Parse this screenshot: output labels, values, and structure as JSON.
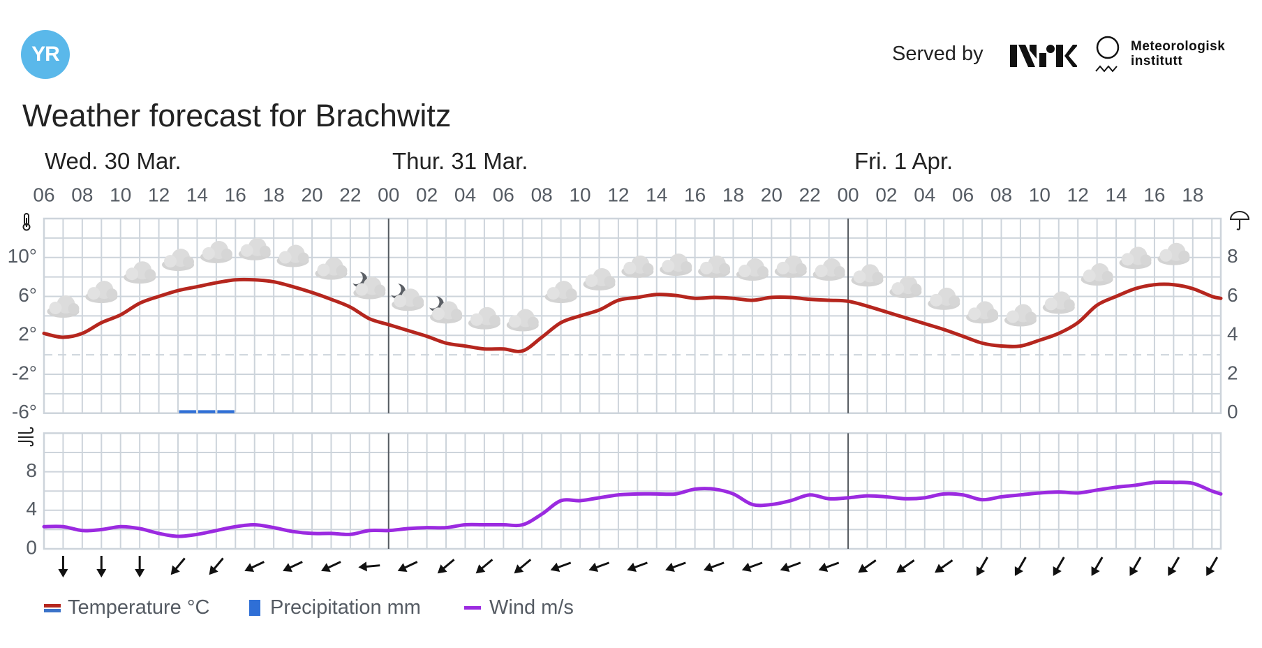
{
  "header": {
    "logo_text": "YR",
    "served_by": "Served by",
    "partner_logos": [
      "NRK",
      "Meteorologisk institutt"
    ],
    "met_line1": "Meteorologisk",
    "met_line2": "institutt"
  },
  "title": "Weather forecast for Brachwitz",
  "days": [
    "Wed. 30 Mar.",
    "Thur. 31 Mar.",
    "Fri. 1 Apr."
  ],
  "legend": {
    "temperature": "Temperature °C",
    "precipitation": "Precipitation mm",
    "wind": "Wind m/s"
  },
  "colors": {
    "temperature": "#b5261e",
    "temperature_below_zero": "#3b73c9",
    "precipitation": "#2f6fd6",
    "wind": "#9b2ae0",
    "grid": "#cdd4db",
    "day_divider": "#555a60",
    "brand": "#5ab8ea"
  },
  "chart_data": [
    {
      "type": "line",
      "name": "temperature-precipitation",
      "x_tick_labels": [
        "06",
        "08",
        "10",
        "12",
        "14",
        "16",
        "18",
        "20",
        "22",
        "00",
        "02",
        "04",
        "06",
        "08",
        "10",
        "12",
        "14",
        "16",
        "18",
        "20",
        "22",
        "00",
        "02",
        "04",
        "06",
        "08",
        "10",
        "12",
        "14",
        "16",
        "18"
      ],
      "y_left_ticks": [
        "10°",
        "6°",
        "2°",
        "-2°",
        "-6°"
      ],
      "y_left_tick_values": [
        10,
        6,
        2,
        -2,
        -6
      ],
      "ylim_left": [
        -6,
        14
      ],
      "y_right_ticks": [
        "8",
        "6",
        "4",
        "2",
        "0"
      ],
      "y_right_tick_values": [
        8,
        6,
        4,
        2,
        0
      ],
      "ylim_right": [
        0,
        10
      ],
      "zero_line": 0,
      "grid": true,
      "times": [
        "Wed 06",
        "Wed 07",
        "Wed 08",
        "Wed 09",
        "Wed 10",
        "Wed 11",
        "Wed 12",
        "Wed 13",
        "Wed 14",
        "Wed 15",
        "Wed 16",
        "Wed 17",
        "Wed 18",
        "Wed 19",
        "Wed 20",
        "Wed 21",
        "Wed 22",
        "Wed 23",
        "Thu 00",
        "Thu 01",
        "Thu 02",
        "Thu 03",
        "Thu 04",
        "Thu 05",
        "Thu 06",
        "Thu 07",
        "Thu 08",
        "Thu 09",
        "Thu 10",
        "Thu 11",
        "Thu 12",
        "Thu 13",
        "Thu 14",
        "Thu 15",
        "Thu 16",
        "Thu 17",
        "Thu 18",
        "Thu 19",
        "Thu 20",
        "Thu 21",
        "Thu 22",
        "Thu 23",
        "Fri 00",
        "Fri 01",
        "Fri 02",
        "Fri 03",
        "Fri 04",
        "Fri 05",
        "Fri 06",
        "Fri 07",
        "Fri 08",
        "Fri 09",
        "Fri 10",
        "Fri 11",
        "Fri 12",
        "Fri 13",
        "Fri 14",
        "Fri 15",
        "Fri 16",
        "Fri 17",
        "Fri 18",
        "Fri 19"
      ],
      "series": [
        {
          "name": "Temperature °C",
          "values": [
            2.2,
            1.8,
            2.2,
            3.3,
            4.1,
            5.3,
            6.0,
            6.6,
            7.0,
            7.4,
            7.7,
            7.7,
            7.5,
            7.0,
            6.4,
            5.7,
            4.9,
            3.7,
            3.1,
            2.5,
            1.9,
            1.2,
            0.9,
            0.6,
            0.6,
            0.4,
            1.8,
            3.3,
            4.0,
            4.6,
            5.6,
            5.9,
            6.2,
            6.1,
            5.8,
            5.9,
            5.8,
            5.6,
            5.9,
            5.9,
            5.7,
            5.6,
            5.5,
            5.0,
            4.4,
            3.8,
            3.2,
            2.6,
            1.9,
            1.2,
            0.9,
            0.9,
            1.5,
            2.2,
            3.3,
            5.1,
            6.0,
            6.8,
            7.2,
            7.2,
            6.8,
            6.0
          ]
        }
      ],
      "precipitation": [
        {
          "time": "Wed 13",
          "mm": 0.1
        },
        {
          "time": "Wed 14",
          "mm": 0.1
        },
        {
          "time": "Wed 15",
          "mm": 0.1
        }
      ],
      "symbols": [
        {
          "time": "Wed 07",
          "symbol": "cloudy"
        },
        {
          "time": "Wed 09",
          "symbol": "cloudy"
        },
        {
          "time": "Wed 11",
          "symbol": "cloudy"
        },
        {
          "time": "Wed 13",
          "symbol": "cloudy"
        },
        {
          "time": "Wed 15",
          "symbol": "cloudy"
        },
        {
          "time": "Wed 17",
          "symbol": "cloudy"
        },
        {
          "time": "Wed 19",
          "symbol": "cloudy"
        },
        {
          "time": "Wed 21",
          "symbol": "cloudy"
        },
        {
          "time": "Wed 23",
          "symbol": "partly-cloudy-night"
        },
        {
          "time": "Thu 01",
          "symbol": "partly-cloudy-night"
        },
        {
          "time": "Thu 03",
          "symbol": "partly-cloudy-night"
        },
        {
          "time": "Thu 05",
          "symbol": "cloudy"
        },
        {
          "time": "Thu 07",
          "symbol": "cloudy"
        },
        {
          "time": "Thu 09",
          "symbol": "cloudy"
        },
        {
          "time": "Thu 11",
          "symbol": "cloudy"
        },
        {
          "time": "Thu 13",
          "symbol": "cloudy"
        },
        {
          "time": "Thu 15",
          "symbol": "cloudy"
        },
        {
          "time": "Thu 17",
          "symbol": "cloudy"
        },
        {
          "time": "Thu 19",
          "symbol": "cloudy"
        },
        {
          "time": "Thu 21",
          "symbol": "cloudy"
        },
        {
          "time": "Thu 23",
          "symbol": "cloudy"
        },
        {
          "time": "Fri 01",
          "symbol": "cloudy"
        },
        {
          "time": "Fri 03",
          "symbol": "cloudy"
        },
        {
          "time": "Fri 05",
          "symbol": "cloudy"
        },
        {
          "time": "Fri 07",
          "symbol": "cloudy"
        },
        {
          "time": "Fri 09",
          "symbol": "cloudy"
        },
        {
          "time": "Fri 11",
          "symbol": "cloudy"
        },
        {
          "time": "Fri 13",
          "symbol": "cloudy"
        },
        {
          "time": "Fri 15",
          "symbol": "cloudy"
        },
        {
          "time": "Fri 17",
          "symbol": "cloudy"
        }
      ]
    },
    {
      "type": "line",
      "name": "wind",
      "y_left_ticks": [
        "8",
        "4",
        "0"
      ],
      "y_left_tick_values": [
        8,
        4,
        0
      ],
      "ylim": [
        0,
        12
      ],
      "grid": true,
      "series": [
        {
          "name": "Wind m/s",
          "values": [
            2.3,
            2.3,
            1.9,
            2.0,
            2.3,
            2.1,
            1.6,
            1.3,
            1.5,
            1.9,
            2.3,
            2.5,
            2.2,
            1.8,
            1.6,
            1.6,
            1.5,
            1.9,
            1.9,
            2.1,
            2.2,
            2.2,
            2.5,
            2.5,
            2.5,
            2.5,
            3.6,
            5.0,
            5.0,
            5.3,
            5.6,
            5.7,
            5.7,
            5.7,
            6.2,
            6.2,
            5.7,
            4.6,
            4.6,
            5.0,
            5.6,
            5.2,
            5.3,
            5.5,
            5.4,
            5.2,
            5.3,
            5.7,
            5.6,
            5.1,
            5.4,
            5.6,
            5.8,
            5.9,
            5.8,
            6.1,
            6.4,
            6.6,
            6.9,
            6.9,
            6.8,
            6.0
          ]
        }
      ],
      "wind_arrows": {
        "times": [
          "Wed 07",
          "Wed 09",
          "Wed 11",
          "Wed 13",
          "Wed 15",
          "Wed 17",
          "Wed 19",
          "Wed 21",
          "Wed 23",
          "Thu 01",
          "Thu 03",
          "Thu 05",
          "Thu 07",
          "Thu 09",
          "Thu 11",
          "Thu 13",
          "Thu 15",
          "Thu 17",
          "Thu 19",
          "Thu 21",
          "Thu 23",
          "Fri 01",
          "Fri 03",
          "Fri 05",
          "Fri 07",
          "Fri 09",
          "Fri 11",
          "Fri 13",
          "Fri 15",
          "Fri 17",
          "Fri 19"
        ],
        "pointing_deg": [
          180,
          180,
          180,
          220,
          220,
          245,
          245,
          245,
          265,
          245,
          230,
          230,
          230,
          250,
          250,
          250,
          250,
          250,
          250,
          250,
          250,
          235,
          235,
          235,
          210,
          210,
          210,
          210,
          210,
          210,
          210
        ]
      }
    }
  ],
  "icons": {
    "temperature_axis": "thermometer-icon",
    "precipitation_axis": "umbrella-icon",
    "wind_axis": "wind-icon"
  }
}
